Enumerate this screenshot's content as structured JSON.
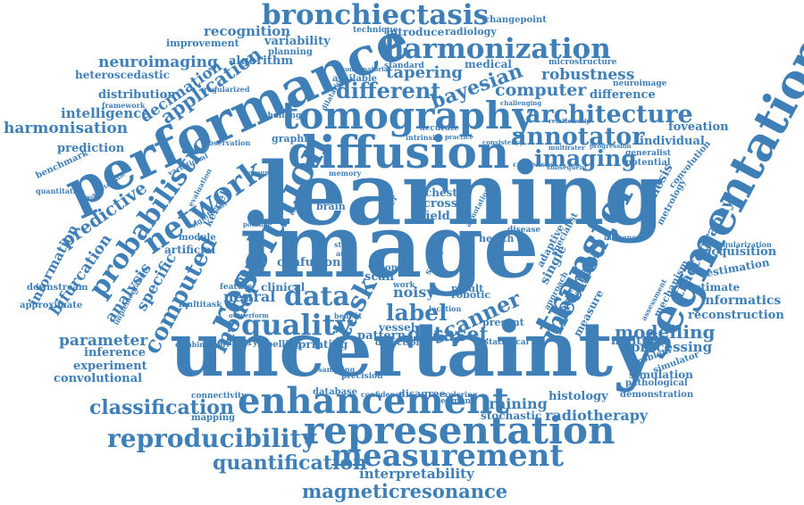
{
  "words": {
    "learning": "learning",
    "image": "image",
    "uncertainty": "uncertainty",
    "performance": "performance",
    "segmentation": "segmentation",
    "diffusion": "diffusion",
    "tomography": "tomography",
    "harmonization": "harmonization",
    "bronchiectasis": "bronchiectasis",
    "representation": "representation",
    "enhancement": "enhancement",
    "measurement": "measurement",
    "magneticresonance": "magneticresonance",
    "reproducibility": "reproducibility",
    "quantification": "quantification",
    "interpretability": "interpretability",
    "classification": "classification",
    "transfer": "transfer",
    "resolution": "resolution",
    "network": "network",
    "probabilistic": "probabilistic",
    "architecture": "architecture",
    "annotator": "annotator",
    "imaging": "imaging",
    "quality": "quality",
    "data": "data",
    "task": "task",
    "label": "label",
    "scanner": "scanner",
    "dataset": "dataset",
    "method": "method",
    "modelling": "modelling",
    "computed": "computed",
    "model": "model",
    "predictive": "predictive",
    "application": "application",
    "decimation": "decimation",
    "neuroimaging": "neuroimaging",
    "recognition": "recognition",
    "variability": "variability",
    "improvement": "improvement",
    "planning": "planning",
    "algorithm": "algorithm",
    "different": "different",
    "bayesian": "bayesian",
    "tapering": "tapering",
    "computer": "computer",
    "robustness": "robustness",
    "difference": "difference",
    "introduce": "introduce",
    "radiology": "radiology",
    "technique": "technique",
    "changepoint": "changepoint",
    "heteroscedastic": "heteroscedastic",
    "distribution": "distribution",
    "intelligence": "intelligence",
    "harmonisation": "harmonisation",
    "prediction": "prediction",
    "benchmark": "benchmark",
    "information": "information",
    "bifurcation": "bifurcation",
    "specific": "specific",
    "analysis": "analysis",
    "parameter": "parameter",
    "inference": "inference",
    "experiment": "experiment",
    "convolutional": "convolutional",
    "downstream": "downstream",
    "approximate": "approximate",
    "foveation": "foveation",
    "individual": "individual",
    "synthesis": "synthesis",
    "metrology": "metrology",
    "tractography": "tractography",
    "acquisition": "acquisition",
    "estimation": "estimation",
    "estimate": "estimate",
    "informatics": "informatics",
    "reconstruction": "reconstruction",
    "processing": "processing",
    "simulation": "simulation",
    "demonstration": "demonstration",
    "histology": "histology",
    "training": "training",
    "radiotherapy": "radiotherapy",
    "stochastic": "stochastic",
    "multiple": "multiple",
    "mechanism": "mechanism",
    "convolution": "convolution",
    "medical": "medical",
    "standard": "standard",
    "microstructure": "microstructure",
    "neuroimage": "neuroimage",
    "available": "available",
    "potential": "potential",
    "generalist": "generalist",
    "accuracy": "accuracy",
    "measure": "measure",
    "adaptive": "adaptive",
    "single": "single",
    "result": "result",
    "robotic": "robotic",
    "present": "present",
    "statistical": "statistical",
    "pathological": "pathological",
    "simulator": "simulator",
    "neural": "neural",
    "human": "human",
    "noisy": "noisy",
    "clinical": "clinical",
    "feature": "feature",
    "pattern": "pattern",
    "vessel": "vessel",
    "detection": "detection",
    "printing": "printing",
    "geometry": "geometry",
    "labelling": "labelling",
    "sampling": "sampling",
    "precision": "precision",
    "database": "database",
    "confidence": "confidence",
    "disagree": "disagree",
    "exploring": "exploring",
    "segment": "segment",
    "connectivity": "connectivity",
    "mapping": "mapping",
    "combination": "combination",
    "multitask": "multitask",
    "artificial": "artificial",
    "module": "module",
    "kernel": "kernel",
    "brain": "brain",
    "chest": "chest",
    "cross": "cross",
    "field": "field",
    "scan": "scan",
    "confusion": "confusion",
    "vision": "vision",
    "work": "work",
    "graphic": "graphic",
    "challenge": "challenge",
    "observation": "observation",
    "quantitative": "quantitative",
    "characteristic": "characteristic",
    "framework": "framework",
    "dilatation": "dilatation",
    "combinatorial": "combinatorial",
    "regularized": "regularized",
    "variational": "variational",
    "implementation": "implementation",
    "regularization": "regularization",
    "influence": "influence",
    "disease": "disease",
    "health": "health",
    "specialist": "specialist",
    "approach": "approach",
    "relationship": "relationship",
    "challenging": "challenging",
    "consistency": "consistency",
    "consensus": "consensus",
    "subsequent": "subsequent",
    "multirater": "multirater",
    "progression": "progression",
    "accurate": "accurate",
    "intrinsic": "intrinsic",
    "practice": "practice",
    "memory": "memory",
    "evaluation": "evaluation",
    "problem": "problem",
    "outperform": "outperform",
    "significant": "significant",
    "assessment": "assessment",
    "possible": "possible",
    "benefit": "benefit",
    "location": "location",
    "annotation": "annotation",
    "safety": "safety",
    "grouping": "grouping",
    "expert": "expert",
    "other": "other",
    "state": "state",
    "area": "area"
  },
  "colors": {
    "primary": "#3f7fb8",
    "secondary": "#4a86bd",
    "tertiary": "#5590c4",
    "background": "#ffffff"
  }
}
